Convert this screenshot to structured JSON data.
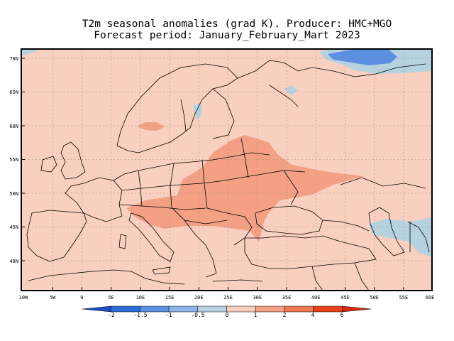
{
  "title": {
    "line1": "T2m seasonal anomalies (grad K). Producer: HMC+MGO",
    "line2": "Forecast period: January_February_Mart 2023"
  },
  "map": {
    "lon_range": [
      -10,
      60
    ],
    "lat_range": [
      35,
      72
    ],
    "lon_ticks": [
      "10W",
      "5W",
      "0",
      "5E",
      "10E",
      "15E",
      "20E",
      "25E",
      "30E",
      "35E",
      "40E",
      "45E",
      "50E",
      "55E",
      "60E"
    ],
    "lat_ticks": [
      "70N",
      "65N",
      "60N",
      "55N",
      "50N",
      "45N",
      "40N"
    ],
    "background_anomaly_class": "0 to 1",
    "colors": {
      "base": "#f9cfbf",
      "warm": "#f3a084",
      "cool": "#b6d2e0",
      "cold": "#5b8fe2",
      "land_border": "#000000",
      "grid": "#9a8a80"
    }
  },
  "colorbar": {
    "labels": [
      "-2",
      "-1.5",
      "-1",
      "-0.5",
      "0",
      "1",
      "2",
      "4",
      "6"
    ],
    "colors": [
      "#1a4fc0",
      "#2f6dd6",
      "#5b8fe2",
      "#8fb4ea",
      "#b6d2e0",
      "#f9cfbf",
      "#f3a084",
      "#ee7a52",
      "#e8421a",
      "#d82a0e"
    ]
  }
}
